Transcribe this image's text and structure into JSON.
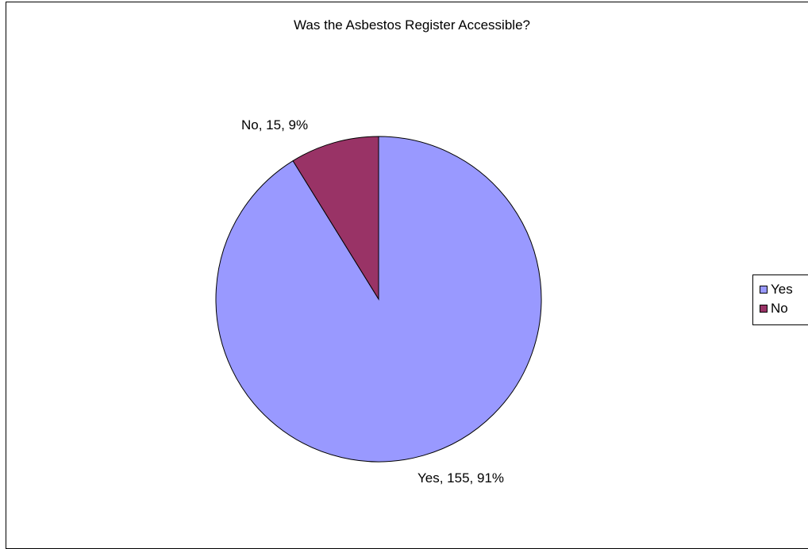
{
  "chart_data": {
    "type": "pie",
    "title": "Was the Asbestos Register Accessible?",
    "categories": [
      "Yes",
      "No"
    ],
    "values": [
      155,
      15
    ],
    "percentages": [
      91,
      9
    ],
    "data_labels": [
      "Yes, 155, 91%",
      "No, 15, 9%"
    ],
    "colors": [
      "#9999FF",
      "#993366"
    ],
    "legend": {
      "placement": "right",
      "items": [
        "Yes",
        "No"
      ]
    }
  }
}
